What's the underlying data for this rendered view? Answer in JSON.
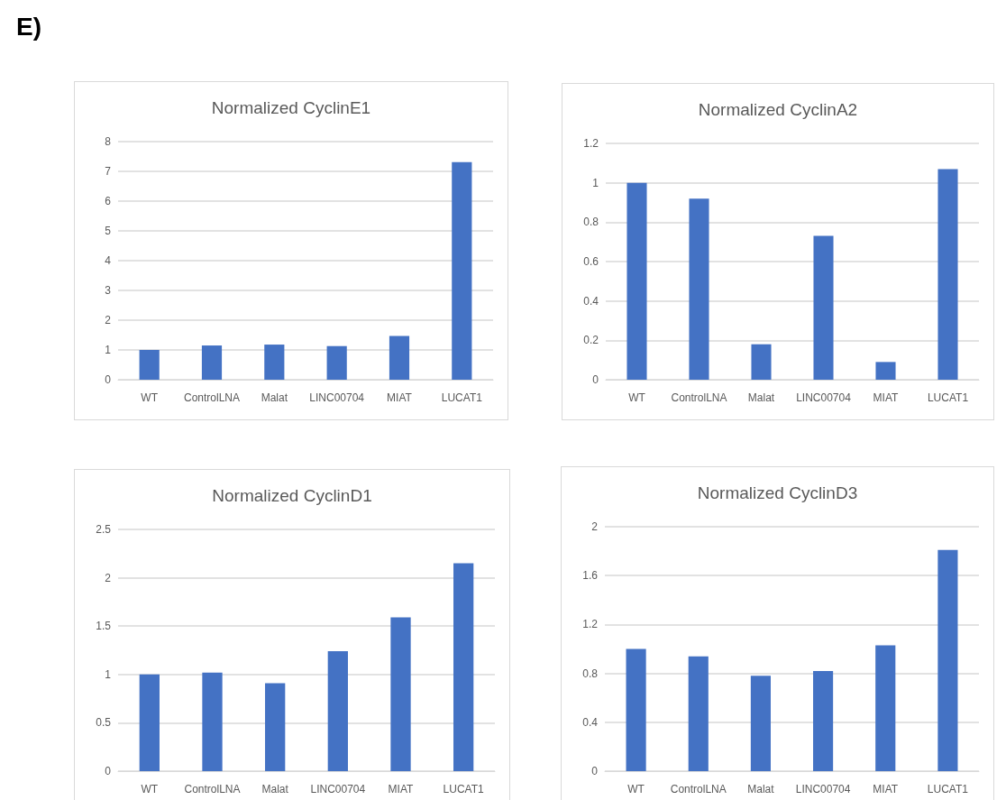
{
  "chart_data": [
    {
      "type": "bar",
      "title": "Normalized CyclinE1",
      "annotations": [
        "E)"
      ],
      "categories": [
        "WT",
        "ControlLNA",
        "Malat",
        "LINC00704",
        "MIAT",
        "LUCAT1"
      ],
      "values": [
        1.0,
        1.15,
        1.18,
        1.13,
        1.47,
        7.31
      ],
      "color": "#4472c4",
      "ylim": [
        0,
        8
      ],
      "yticks": [
        0,
        1,
        2,
        3,
        4,
        5,
        6,
        7,
        8
      ],
      "grid": "y"
    },
    {
      "type": "bar",
      "title": "Normalized CyclinA2",
      "categories": [
        "WT",
        "ControlLNA",
        "Malat",
        "LINC00704",
        "MIAT",
        "LUCAT1"
      ],
      "values": [
        1.0,
        0.92,
        0.18,
        0.73,
        0.09,
        1.07
      ],
      "color": "#4472c4",
      "ylim": [
        0,
        1.2
      ],
      "yticks": [
        0,
        0.2,
        0.4,
        0.6,
        0.8,
        1,
        1.2
      ],
      "grid": "y"
    },
    {
      "type": "bar",
      "title": "Normalized CyclinD1",
      "categories": [
        "WT",
        "ControlLNA",
        "Malat",
        "LINC00704",
        "MIAT",
        "LUCAT1"
      ],
      "values": [
        1.0,
        1.02,
        0.91,
        1.24,
        1.59,
        2.15
      ],
      "color": "#4472c4",
      "ylim": [
        0,
        2.5
      ],
      "yticks": [
        0,
        0.5,
        1,
        1.5,
        2,
        2.5
      ],
      "grid": "y"
    },
    {
      "type": "bar",
      "title": "Normalized CyclinD3",
      "categories": [
        "WT",
        "ControlLNA",
        "Malat",
        "LINC00704",
        "MIAT",
        "LUCAT1"
      ],
      "values": [
        1.0,
        0.94,
        0.78,
        0.82,
        1.03,
        1.81
      ],
      "color": "#4472c4",
      "ylim": [
        0,
        2
      ],
      "yticks": [
        0,
        0.4,
        0.8,
        1.2,
        1.6,
        2
      ],
      "grid": "y"
    }
  ]
}
